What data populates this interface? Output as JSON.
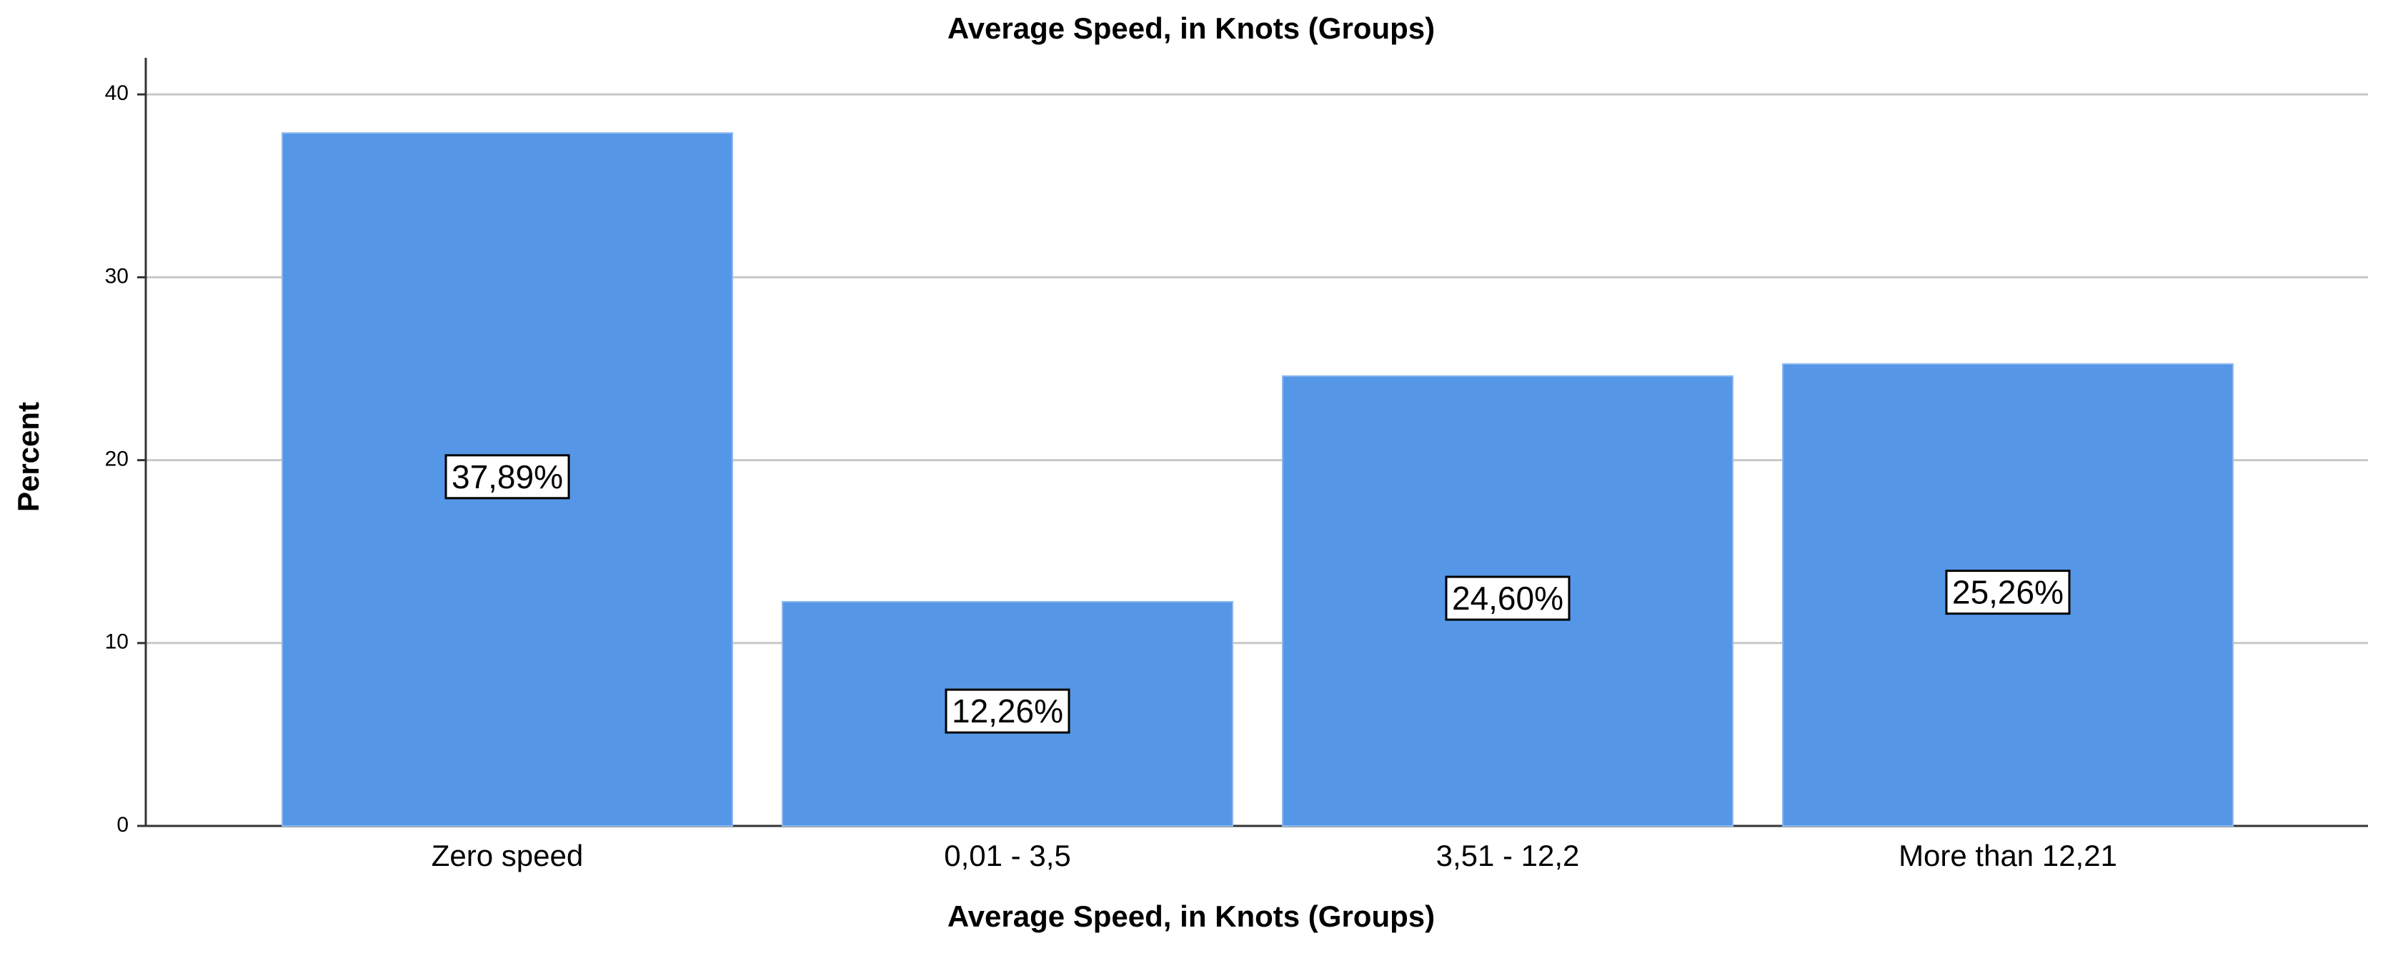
{
  "chart_data": {
    "type": "bar",
    "title": "Average Speed, in Knots (Groups)",
    "x_label": "Average Speed, in Knots (Groups)",
    "y_label": "Percent",
    "categories": [
      "Zero speed",
      "0,01 - 3,5",
      "3,51 - 12,2",
      "More than 12,21"
    ],
    "values": [
      37.89,
      12.26,
      24.6,
      25.26
    ],
    "value_labels": [
      "37,89%",
      "12,26%",
      "24,60%",
      "25,26%"
    ],
    "color": "#5596e6",
    "ylim": [
      0,
      42
    ],
    "yticks": [
      0,
      10,
      20,
      30,
      40
    ],
    "grid": true
  }
}
